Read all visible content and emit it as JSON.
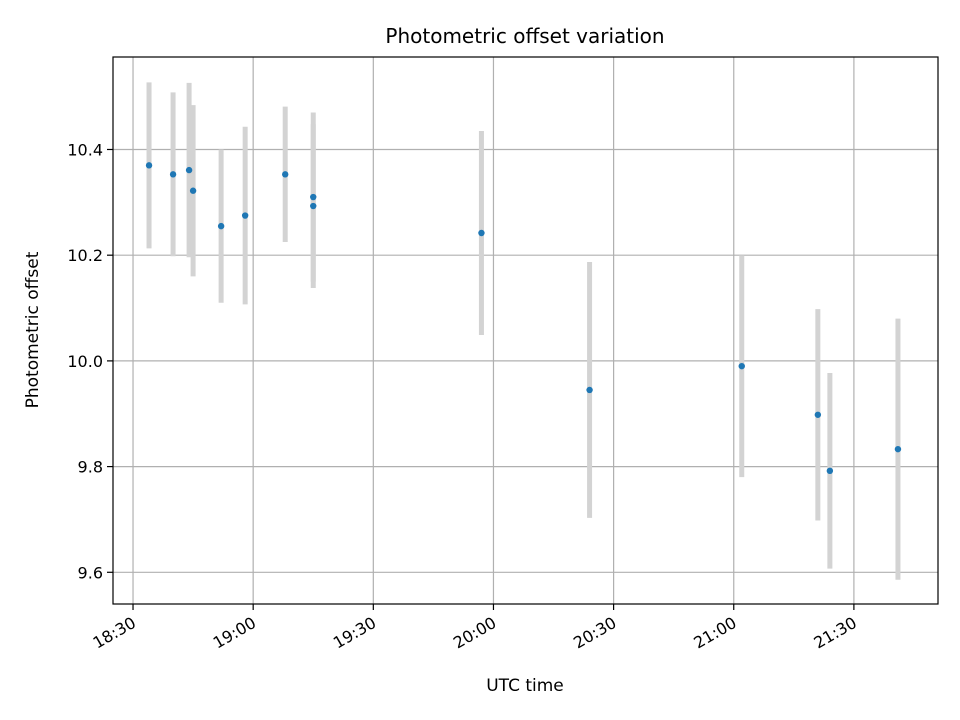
{
  "chart_data": {
    "type": "scatter",
    "title": "Photometric offset variation",
    "xlabel": "UTC time",
    "ylabel": "Photometric offset",
    "x_axis": {
      "unit": "UTC time (HH:MM)",
      "range": [
        "18:25",
        "21:51"
      ],
      "ticks": [
        "18:30",
        "19:00",
        "19:30",
        "20:00",
        "20:30",
        "21:00",
        "21:30"
      ]
    },
    "y_axis": {
      "range": [
        9.54,
        10.575
      ],
      "ticks": [
        9.6,
        9.8,
        10.0,
        10.2,
        10.4
      ]
    },
    "grid": true,
    "colors": {
      "point": "#1f77b4",
      "errorbar": "#d3d3d3",
      "grid": "#b0b0b0"
    },
    "series": [
      {
        "points": [
          {
            "t": "18:34",
            "y": 10.37,
            "err": 0.157
          },
          {
            "t": "18:40",
            "y": 10.353,
            "err": 0.155
          },
          {
            "t": "18:44",
            "y": 10.361,
            "err": 0.165
          },
          {
            "t": "18:45",
            "y": 10.322,
            "err": 0.162
          },
          {
            "t": "18:52",
            "y": 10.255,
            "err": 0.145
          },
          {
            "t": "18:58",
            "y": 10.275,
            "err": 0.168
          },
          {
            "t": "19:08",
            "y": 10.353,
            "err": 0.128
          },
          {
            "t": "19:15",
            "y": 10.31,
            "err": 0.16
          },
          {
            "t": "19:15",
            "y": 10.293,
            "err": 0.155
          },
          {
            "t": "19:57",
            "y": 10.242,
            "err": 0.193
          },
          {
            "t": "20:24",
            "y": 9.945,
            "err": 0.242
          },
          {
            "t": "21:02",
            "y": 9.99,
            "err": 0.21
          },
          {
            "t": "21:21",
            "y": 9.898,
            "err": 0.2
          },
          {
            "t": "21:24",
            "y": 9.792,
            "err": 0.185
          },
          {
            "t": "21:41",
            "y": 9.833,
            "err": 0.247
          }
        ]
      }
    ]
  }
}
